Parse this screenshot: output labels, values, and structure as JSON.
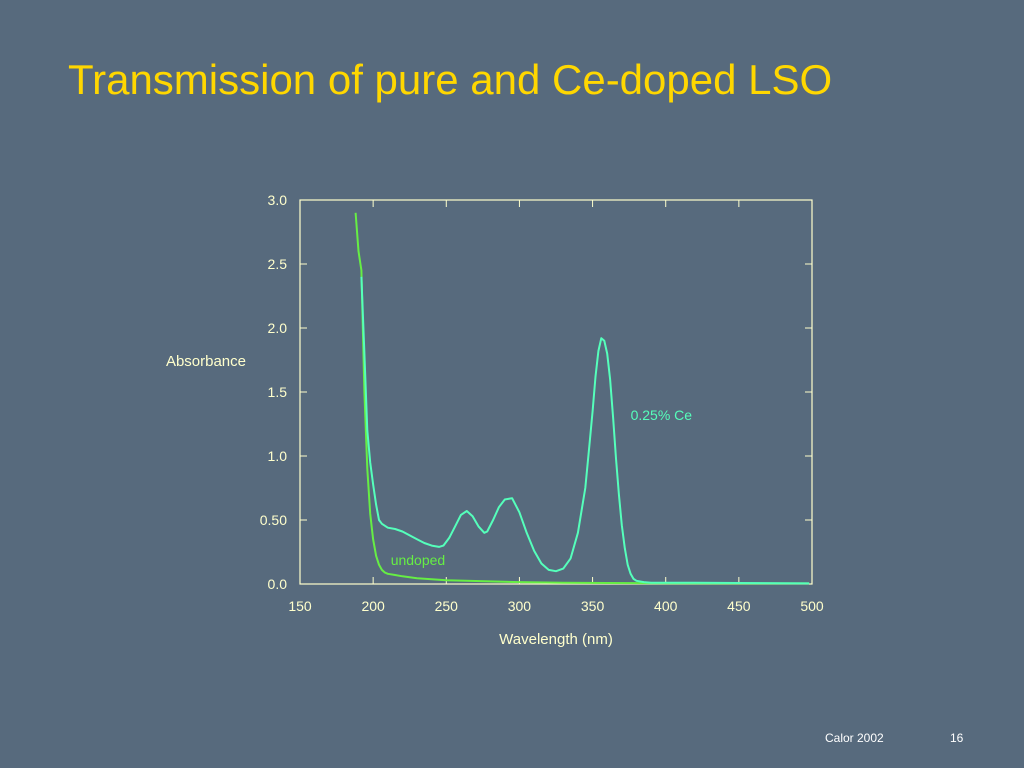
{
  "slide": {
    "title": "Transmission of pure and Ce-doped LSO",
    "footer_source": "Calor 2002",
    "footer_page": "16"
  },
  "colors": {
    "background": "#576a7d",
    "title": "#ffd700",
    "axis": "#ffffcc",
    "text": "#ffffcc",
    "series_undoped": "#66ee44",
    "series_ce": "#55ffbb"
  },
  "chart_data": {
    "type": "line",
    "title": "",
    "xlabel": "Wavelength (nm)",
    "ylabel": "Absorbance",
    "xlim": [
      150,
      500
    ],
    "ylim": [
      0,
      3.0
    ],
    "xticks": [
      150,
      200,
      250,
      300,
      350,
      400,
      450,
      500
    ],
    "xtick_labels": [
      "150",
      "200",
      "250",
      "300",
      "350",
      "400",
      "450",
      "500"
    ],
    "yticks": [
      0,
      0.5,
      1.0,
      1.5,
      2.0,
      2.5,
      3.0
    ],
    "ytick_labels": [
      "0.0",
      "0.50",
      "1.0",
      "1.5",
      "2.0",
      "2.5",
      "3.0"
    ],
    "grid": false,
    "series": [
      {
        "name": "undoped",
        "color": "#66ee44",
        "x": [
          188,
          190,
          192,
          194,
          196,
          198,
          200,
          202,
          204,
          206,
          208,
          210,
          215,
          220,
          230,
          250,
          280,
          300,
          330,
          360,
          400,
          450,
          498
        ],
        "y": [
          2.9,
          2.6,
          2.45,
          1.5,
          0.9,
          0.55,
          0.35,
          0.22,
          0.15,
          0.11,
          0.09,
          0.08,
          0.07,
          0.06,
          0.045,
          0.03,
          0.02,
          0.015,
          0.01,
          0.008,
          0.006,
          0.005,
          0.005
        ]
      },
      {
        "name": "0.25% Ce",
        "color": "#55ffbb",
        "x": [
          192,
          194,
          196,
          198,
          200,
          202,
          204,
          206,
          210,
          215,
          220,
          225,
          230,
          235,
          240,
          245,
          248,
          252,
          256,
          260,
          264,
          268,
          272,
          276,
          278,
          282,
          286,
          290,
          295,
          300,
          305,
          310,
          315,
          320,
          325,
          330,
          335,
          340,
          345,
          348,
          350,
          352,
          354,
          356,
          358,
          360,
          362,
          364,
          366,
          368,
          370,
          372,
          374,
          376,
          378,
          380,
          385,
          390,
          400,
          420,
          450,
          480,
          498
        ],
        "y": [
          2.4,
          1.8,
          1.2,
          0.95,
          0.78,
          0.62,
          0.5,
          0.47,
          0.44,
          0.43,
          0.41,
          0.38,
          0.35,
          0.32,
          0.3,
          0.29,
          0.3,
          0.36,
          0.45,
          0.54,
          0.57,
          0.53,
          0.45,
          0.4,
          0.41,
          0.5,
          0.6,
          0.66,
          0.67,
          0.56,
          0.4,
          0.26,
          0.16,
          0.11,
          0.1,
          0.12,
          0.2,
          0.4,
          0.75,
          1.1,
          1.35,
          1.62,
          1.82,
          1.92,
          1.9,
          1.8,
          1.6,
          1.3,
          0.98,
          0.7,
          0.46,
          0.28,
          0.15,
          0.08,
          0.04,
          0.025,
          0.015,
          0.01,
          0.01,
          0.01,
          0.008,
          0.006,
          0.005
        ]
      }
    ],
    "annotations": [
      {
        "text": "0.25% Ce",
        "x": 376,
        "y": 1.28,
        "series": "0.25% Ce"
      },
      {
        "text": "undoped",
        "x": 212,
        "y": 0.15,
        "series": "undoped"
      }
    ]
  }
}
